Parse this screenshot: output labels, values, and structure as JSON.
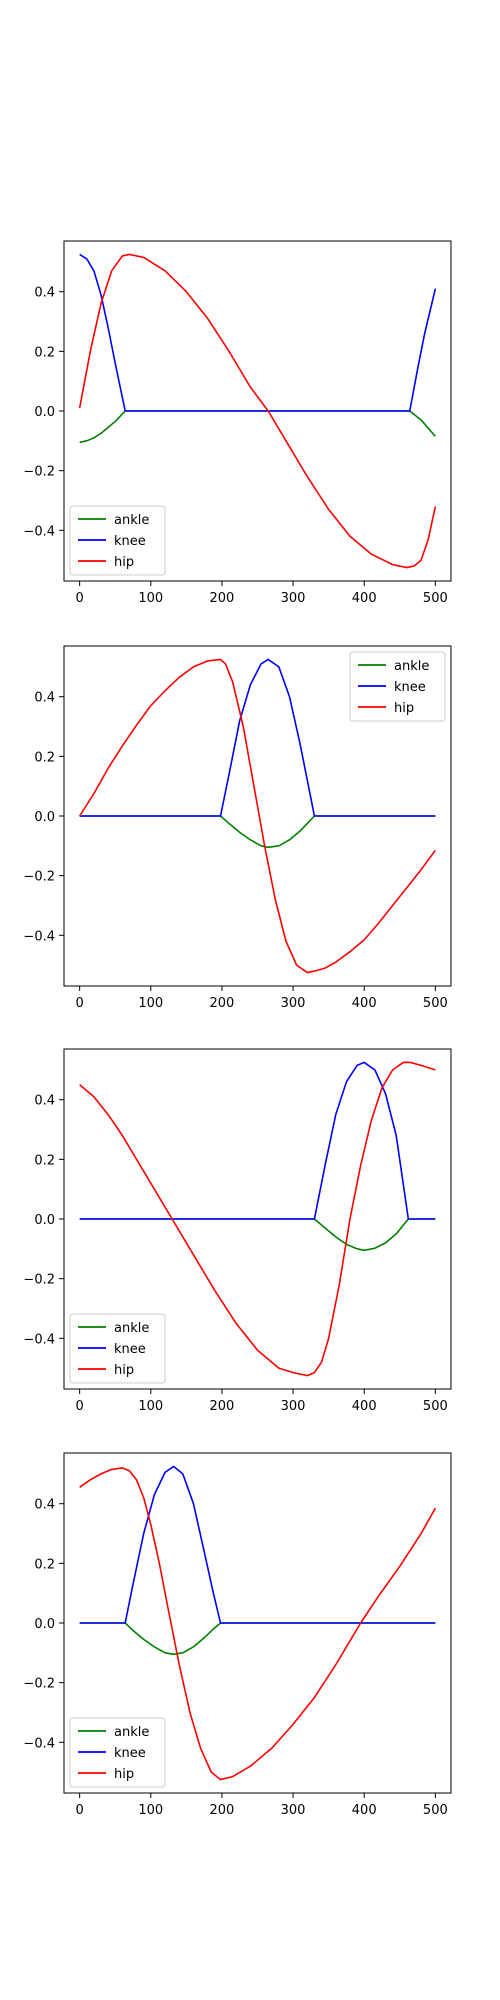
{
  "chart_data": [
    {
      "type": "line",
      "xlim": [
        -22,
        522
      ],
      "ylim": [
        -0.57,
        0.57
      ],
      "xticks": [
        0,
        100,
        200,
        300,
        400,
        500
      ],
      "yticks": [
        -0.4,
        -0.2,
        0.0,
        0.2,
        0.4
      ],
      "ytick_labels": [
        "−0.4",
        "−0.2",
        "0.0",
        "0.2",
        "0.4"
      ],
      "xtick_labels": [
        "0",
        "100",
        "200",
        "300",
        "400",
        "500"
      ],
      "legend": "lower-left",
      "series": [
        {
          "name": "ankle",
          "color": "#008000",
          "x": [
            0,
            10,
            20,
            30,
            40,
            50,
            64,
            100,
            200,
            300,
            400,
            464,
            480,
            500
          ],
          "y": [
            -0.105,
            -0.1,
            -0.09,
            -0.075,
            -0.055,
            -0.035,
            0.0,
            0.0,
            0.0,
            0.0,
            0.0,
            0.0,
            -0.03,
            -0.085
          ]
        },
        {
          "name": "knee",
          "color": "#0000ff",
          "x": [
            0,
            10,
            20,
            30,
            40,
            50,
            64,
            100,
            200,
            300,
            400,
            464,
            475,
            485,
            495,
            500
          ],
          "y": [
            0.525,
            0.51,
            0.47,
            0.39,
            0.28,
            0.16,
            0.0,
            0.0,
            0.0,
            0.0,
            0.0,
            0.0,
            0.14,
            0.26,
            0.36,
            0.41
          ]
        },
        {
          "name": "hip",
          "color": "#ff0000",
          "x": [
            0,
            15,
            30,
            45,
            60,
            70,
            90,
            120,
            150,
            180,
            210,
            240,
            265,
            290,
            320,
            350,
            380,
            410,
            440,
            460,
            470,
            480,
            490,
            500
          ],
          "y": [
            0.01,
            0.2,
            0.36,
            0.47,
            0.52,
            0.525,
            0.515,
            0.47,
            0.4,
            0.31,
            0.2,
            0.08,
            0.0,
            -0.1,
            -0.22,
            -0.33,
            -0.42,
            -0.48,
            -0.515,
            -0.525,
            -0.52,
            -0.5,
            -0.43,
            -0.32
          ]
        }
      ]
    },
    {
      "type": "line",
      "xlim": [
        -22,
        522
      ],
      "ylim": [
        -0.57,
        0.57
      ],
      "xticks": [
        0,
        100,
        200,
        300,
        400,
        500
      ],
      "yticks": [
        -0.4,
        -0.2,
        0.0,
        0.2,
        0.4
      ],
      "ytick_labels": [
        "−0.4",
        "−0.2",
        "0.0",
        "0.2",
        "0.4"
      ],
      "xtick_labels": [
        "0",
        "100",
        "200",
        "300",
        "400",
        "500"
      ],
      "legend": "upper-right",
      "series": [
        {
          "name": "ankle",
          "color": "#008000",
          "x": [
            0,
            100,
            198,
            210,
            225,
            240,
            255,
            265,
            280,
            295,
            310,
            320,
            330,
            400,
            500
          ],
          "y": [
            0.0,
            0.0,
            0.0,
            -0.025,
            -0.055,
            -0.08,
            -0.1,
            -0.105,
            -0.1,
            -0.08,
            -0.05,
            -0.025,
            0.0,
            0.0,
            0.0
          ]
        },
        {
          "name": "knee",
          "color": "#0000ff",
          "x": [
            0,
            100,
            198,
            210,
            225,
            240,
            255,
            265,
            280,
            295,
            310,
            320,
            330,
            400,
            500
          ],
          "y": [
            0.0,
            0.0,
            0.0,
            0.14,
            0.32,
            0.44,
            0.51,
            0.525,
            0.5,
            0.4,
            0.24,
            0.12,
            0.0,
            0.0,
            0.0
          ]
        },
        {
          "name": "hip",
          "color": "#ff0000",
          "x": [
            0,
            20,
            40,
            60,
            80,
            100,
            120,
            140,
            160,
            180,
            198,
            205,
            215,
            230,
            245,
            260,
            275,
            290,
            305,
            320,
            330,
            345,
            360,
            380,
            400,
            420,
            440,
            460,
            480,
            500
          ],
          "y": [
            0.0,
            0.075,
            0.16,
            0.235,
            0.305,
            0.37,
            0.42,
            0.465,
            0.5,
            0.52,
            0.525,
            0.51,
            0.45,
            0.3,
            0.1,
            -0.1,
            -0.28,
            -0.42,
            -0.5,
            -0.525,
            -0.52,
            -0.51,
            -0.49,
            -0.455,
            -0.415,
            -0.36,
            -0.3,
            -0.24,
            -0.18,
            -0.115
          ]
        }
      ]
    },
    {
      "type": "line",
      "xlim": [
        -22,
        522
      ],
      "ylim": [
        -0.57,
        0.57
      ],
      "xticks": [
        0,
        100,
        200,
        300,
        400,
        500
      ],
      "yticks": [
        -0.4,
        -0.2,
        0.0,
        0.2,
        0.4
      ],
      "ytick_labels": [
        "−0.4",
        "−0.2",
        "0.0",
        "0.2",
        "0.4"
      ],
      "xtick_labels": [
        "0",
        "100",
        "200",
        "300",
        "400",
        "500"
      ],
      "legend": "lower-left",
      "series": [
        {
          "name": "ankle",
          "color": "#008000",
          "x": [
            0,
            100,
            200,
            300,
            330,
            345,
            360,
            375,
            390,
            400,
            415,
            430,
            445,
            462,
            480,
            500
          ],
          "y": [
            0.0,
            0.0,
            0.0,
            0.0,
            0.0,
            -0.03,
            -0.06,
            -0.085,
            -0.1,
            -0.105,
            -0.098,
            -0.08,
            -0.05,
            0.0,
            0.0,
            0.0
          ]
        },
        {
          "name": "knee",
          "color": "#0000ff",
          "x": [
            0,
            100,
            200,
            300,
            330,
            345,
            360,
            375,
            390,
            400,
            415,
            430,
            445,
            462,
            480,
            500
          ],
          "y": [
            0.0,
            0.0,
            0.0,
            0.0,
            0.0,
            0.18,
            0.35,
            0.46,
            0.515,
            0.525,
            0.5,
            0.42,
            0.28,
            0.0,
            0.0,
            0.0
          ]
        },
        {
          "name": "hip",
          "color": "#ff0000",
          "x": [
            0,
            20,
            40,
            60,
            80,
            100,
            130,
            160,
            190,
            220,
            250,
            280,
            300,
            320,
            330,
            340,
            350,
            365,
            380,
            395,
            410,
            425,
            440,
            455,
            465,
            480,
            500
          ],
          "y": [
            0.45,
            0.41,
            0.35,
            0.28,
            0.2,
            0.12,
            0.0,
            -0.12,
            -0.24,
            -0.35,
            -0.44,
            -0.5,
            -0.515,
            -0.525,
            -0.515,
            -0.48,
            -0.4,
            -0.22,
            0.0,
            0.18,
            0.33,
            0.44,
            0.5,
            0.525,
            0.525,
            0.515,
            0.5
          ]
        }
      ]
    },
    {
      "type": "line",
      "xlim": [
        -22,
        522
      ],
      "ylim": [
        -0.57,
        0.57
      ],
      "xticks": [
        0,
        100,
        200,
        300,
        400,
        500
      ],
      "yticks": [
        -0.4,
        -0.2,
        0.0,
        0.2,
        0.4
      ],
      "ytick_labels": [
        "−0.4",
        "−0.2",
        "0.0",
        "0.2",
        "0.4"
      ],
      "xtick_labels": [
        "0",
        "100",
        "200",
        "300",
        "400",
        "500"
      ],
      "legend": "lower-left",
      "series": [
        {
          "name": "ankle",
          "color": "#008000",
          "x": [
            0,
            64,
            75,
            90,
            105,
            120,
            132,
            145,
            160,
            175,
            188,
            198,
            300,
            400,
            500
          ],
          "y": [
            0.0,
            0.0,
            -0.025,
            -0.055,
            -0.08,
            -0.1,
            -0.105,
            -0.1,
            -0.08,
            -0.05,
            -0.02,
            0.0,
            0.0,
            0.0,
            0.0
          ]
        },
        {
          "name": "knee",
          "color": "#0000ff",
          "x": [
            0,
            64,
            75,
            90,
            105,
            120,
            132,
            145,
            160,
            175,
            188,
            198,
            300,
            400,
            500
          ],
          "y": [
            0.0,
            0.0,
            0.13,
            0.3,
            0.43,
            0.505,
            0.525,
            0.5,
            0.4,
            0.24,
            0.1,
            0.0,
            0.0,
            0.0,
            0.0
          ]
        },
        {
          "name": "hip",
          "color": "#ff0000",
          "x": [
            0,
            15,
            30,
            45,
            60,
            70,
            80,
            90,
            100,
            112,
            125,
            140,
            155,
            170,
            185,
            198,
            215,
            240,
            270,
            300,
            330,
            360,
            395,
            420,
            450,
            480,
            500
          ],
          "y": [
            0.455,
            0.48,
            0.5,
            0.515,
            0.52,
            0.51,
            0.48,
            0.42,
            0.33,
            0.2,
            0.04,
            -0.14,
            -0.3,
            -0.42,
            -0.5,
            -0.525,
            -0.515,
            -0.48,
            -0.42,
            -0.34,
            -0.25,
            -0.14,
            0.0,
            0.09,
            0.19,
            0.3,
            0.385
          ]
        }
      ]
    }
  ]
}
